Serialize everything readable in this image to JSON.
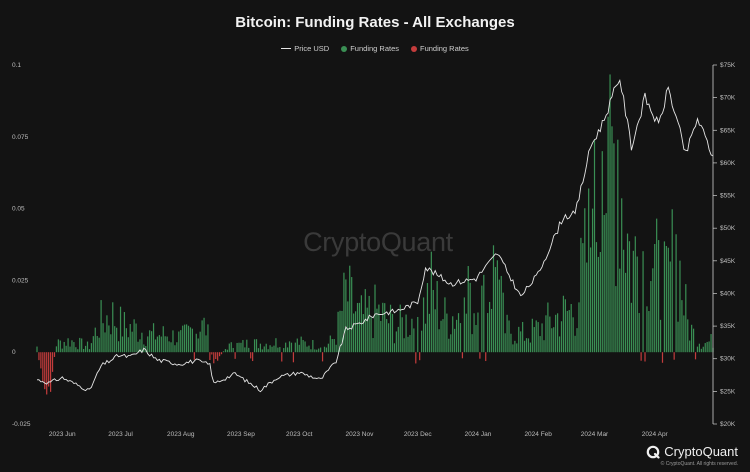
{
  "title": "Bitcoin: Funding Rates - All Exchanges",
  "legend": [
    {
      "label": "Price USD",
      "color": "#e6e6e6",
      "kind": "line"
    },
    {
      "label": "Funding Rates",
      "color": "#3a8f54",
      "kind": "dot"
    },
    {
      "label": "Funding Rates",
      "color": "#c43c3c",
      "kind": "dot"
    }
  ],
  "watermark": "CryptoQuant",
  "brand": {
    "name": "CryptoQuant",
    "copyright": "© CryptoQuant. All rights reserved."
  },
  "colors": {
    "background": "#131313",
    "positive": "#3a8f54",
    "negative": "#c43c3c",
    "price": "#e6e6e6"
  },
  "chart_data": {
    "type": "bar",
    "title": "Bitcoin: Funding Rates - All Exchanges",
    "x_labels": [
      "2023 Jun",
      "2023 Jul",
      "2023 Aug",
      "2023 Sep",
      "2023 Oct",
      "2023 Nov",
      "2023 Dec",
      "2024 Jan",
      "2024 Feb",
      "2024 Mar",
      "2024 Apr"
    ],
    "y_left": {
      "ticks": [
        "0.1",
        "0.075",
        "0.05",
        "0.025",
        "0",
        "-0.025"
      ],
      "range": [
        -0.025,
        0.1
      ]
    },
    "y_right": {
      "ticks": [
        "$75K",
        "$70K",
        "$65K",
        "$60K",
        "$55K",
        "$50K",
        "$45K",
        "$40K",
        "$35K",
        "$30K",
        "$25K",
        "$20K"
      ],
      "range": [
        20000,
        75000
      ]
    },
    "series": [
      {
        "name": "Funding Rates",
        "type": "bar",
        "start": "2023-05-19",
        "end": "2024-05-01",
        "anchors": [
          [
            "2023-05-19",
            0.002
          ],
          [
            "2023-05-22",
            -0.012
          ],
          [
            "2023-05-25",
            -0.016
          ],
          [
            "2023-05-29",
            0.003
          ],
          [
            "2023-06-05",
            0.004
          ],
          [
            "2023-06-15",
            0.002
          ],
          [
            "2023-06-20",
            0.01
          ],
          [
            "2023-06-26",
            0.013
          ],
          [
            "2023-07-02",
            0.009
          ],
          [
            "2023-07-10",
            0.008
          ],
          [
            "2023-07-16",
            0.006
          ],
          [
            "2023-07-25",
            0.006
          ],
          [
            "2023-08-01",
            0.005
          ],
          [
            "2023-08-08",
            0.008
          ],
          [
            "2023-08-14",
            0.009
          ],
          [
            "2023-08-18",
            -0.004
          ],
          [
            "2023-08-25",
            0.002
          ],
          [
            "2023-09-05",
            0.003
          ],
          [
            "2023-09-15",
            0.003
          ],
          [
            "2023-09-25",
            0.004
          ],
          [
            "2023-10-05",
            0.003
          ],
          [
            "2023-10-15",
            0.002
          ],
          [
            "2023-10-20",
            0.006
          ],
          [
            "2023-10-25",
            0.02
          ],
          [
            "2023-11-01",
            0.012
          ],
          [
            "2023-11-10",
            0.014
          ],
          [
            "2023-11-20",
            0.009
          ],
          [
            "2023-12-01",
            0.012
          ],
          [
            "2023-12-08",
            0.02
          ],
          [
            "2023-12-15",
            0.012
          ],
          [
            "2023-12-25",
            0.014
          ],
          [
            "2024-01-05",
            0.018
          ],
          [
            "2024-01-10",
            0.03
          ],
          [
            "2024-01-15",
            0.008
          ],
          [
            "2024-01-25",
            0.006
          ],
          [
            "2024-02-01",
            0.008
          ],
          [
            "2024-02-10",
            0.012
          ],
          [
            "2024-02-20",
            0.015
          ],
          [
            "2024-02-28",
            0.04
          ],
          [
            "2024-03-05",
            0.06
          ],
          [
            "2024-03-12",
            0.07
          ],
          [
            "2024-03-20",
            0.03
          ],
          [
            "2024-03-28",
            0.04
          ],
          [
            "2024-04-05",
            0.02
          ],
          [
            "2024-04-12",
            0.035
          ],
          [
            "2024-04-18",
            0.01
          ],
          [
            "2024-04-22",
            0.005
          ],
          [
            "2024-04-26",
            0.003
          ],
          [
            "2024-05-01",
            0.004
          ]
        ]
      },
      {
        "name": "Price USD",
        "type": "line",
        "points": [
          [
            "2023-05-19",
            26800
          ],
          [
            "2023-05-25",
            26300
          ],
          [
            "2023-06-01",
            27100
          ],
          [
            "2023-06-10",
            25800
          ],
          [
            "2023-06-15",
            25100
          ],
          [
            "2023-06-21",
            28900
          ],
          [
            "2023-06-30",
            30500
          ],
          [
            "2023-07-06",
            30300
          ],
          [
            "2023-07-13",
            31400
          ],
          [
            "2023-07-20",
            29800
          ],
          [
            "2023-07-31",
            29200
          ],
          [
            "2023-08-09",
            29700
          ],
          [
            "2023-08-16",
            29100
          ],
          [
            "2023-08-18",
            26200
          ],
          [
            "2023-08-29",
            27700
          ],
          [
            "2023-09-11",
            25200
          ],
          [
            "2023-09-20",
            27200
          ],
          [
            "2023-10-01",
            27900
          ],
          [
            "2023-10-12",
            26800
          ],
          [
            "2023-10-20",
            29600
          ],
          [
            "2023-10-25",
            34500
          ],
          [
            "2023-11-01",
            35400
          ],
          [
            "2023-11-09",
            36800
          ],
          [
            "2023-11-20",
            37300
          ],
          [
            "2023-12-01",
            38700
          ],
          [
            "2023-12-05",
            44000
          ],
          [
            "2023-12-18",
            41500
          ],
          [
            "2023-12-31",
            42300
          ],
          [
            "2024-01-11",
            46200
          ],
          [
            "2024-01-23",
            39500
          ],
          [
            "2024-02-01",
            43000
          ],
          [
            "2024-02-14",
            51800
          ],
          [
            "2024-02-20",
            52100
          ],
          [
            "2024-02-28",
            62500
          ],
          [
            "2024-03-05",
            66000
          ],
          [
            "2024-03-14",
            73100
          ],
          [
            "2024-03-20",
            62500
          ],
          [
            "2024-03-27",
            70000
          ],
          [
            "2024-04-03",
            65700
          ],
          [
            "2024-04-08",
            71500
          ],
          [
            "2024-04-17",
            61300
          ],
          [
            "2024-04-23",
            66800
          ],
          [
            "2024-05-01",
            61000
          ]
        ]
      }
    ],
    "xlabel": "",
    "ylabel": "",
    "grid": false,
    "legend_position": "top-center"
  }
}
